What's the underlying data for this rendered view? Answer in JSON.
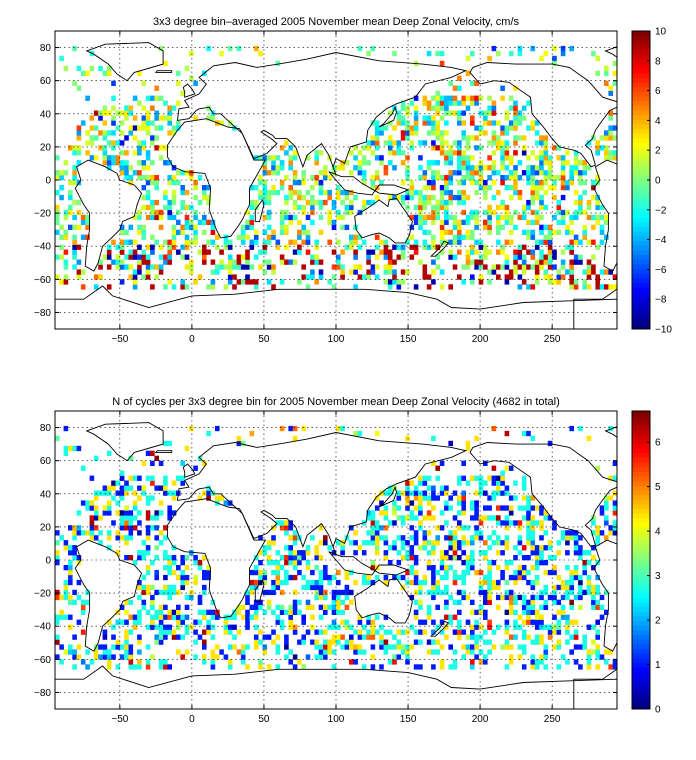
{
  "chart_data": [
    {
      "type": "heatmap",
      "title": "3x3 degree bin–averaged 2005 November mean Deep Zonal Velocity, cm/s",
      "xlabel": "",
      "ylabel": "",
      "xlim": [
        -95,
        295
      ],
      "ylim": [
        -90,
        90
      ],
      "x_ticks": [
        -50,
        0,
        50,
        100,
        150,
        200,
        250
      ],
      "y_ticks": [
        -80,
        -60,
        -40,
        -20,
        0,
        20,
        40,
        60,
        80
      ],
      "grid": true,
      "colorbar": {
        "min": -10,
        "max": 10,
        "ticks": [
          -10,
          -8,
          -6,
          -4,
          -2,
          0,
          2,
          4,
          6,
          8,
          10
        ],
        "colormap": "jet"
      },
      "bin_size_deg": 3,
      "value_range": [
        -10,
        10
      ]
    },
    {
      "type": "heatmap",
      "title": "N of cycles per 3x3 degree bin for 2005 November mean Deep Zonal Velocity (4682 in total)",
      "xlabel": "",
      "ylabel": "",
      "xlim": [
        -95,
        295
      ],
      "ylim": [
        -90,
        90
      ],
      "x_ticks": [
        -50,
        0,
        50,
        100,
        150,
        200,
        250
      ],
      "y_ticks": [
        -80,
        -60,
        -40,
        -20,
        0,
        20,
        40,
        60,
        80
      ],
      "grid": true,
      "colorbar": {
        "min": 0,
        "max": 6.7,
        "ticks": [
          0,
          1,
          2,
          3,
          4,
          5,
          6
        ],
        "colormap": "jet"
      },
      "bin_size_deg": 3,
      "value_range": [
        0,
        6.7
      ]
    }
  ]
}
